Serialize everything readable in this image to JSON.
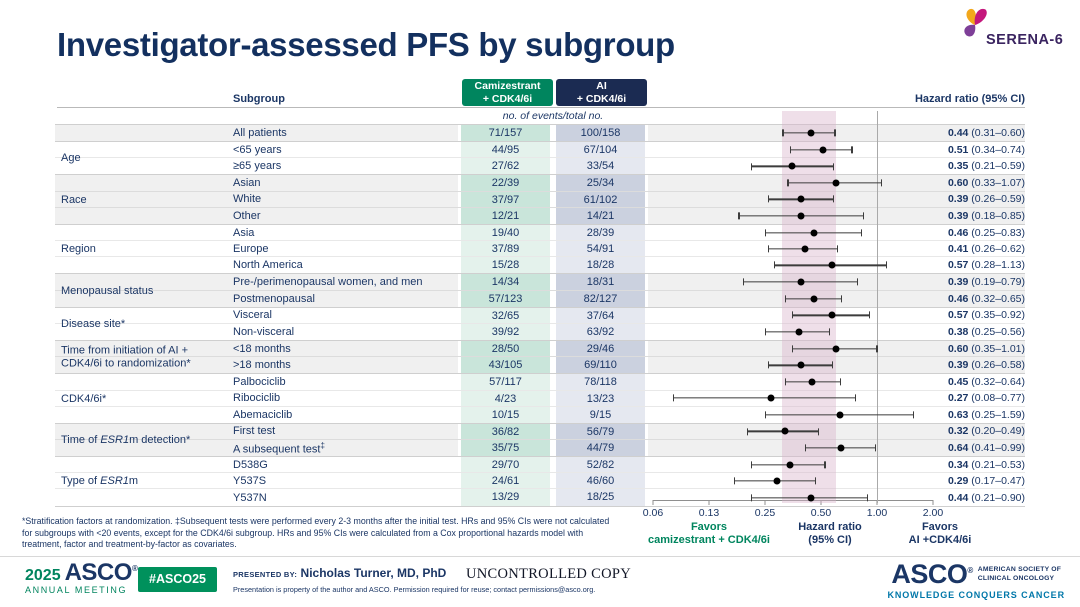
{
  "title": "Investigator-assessed PFS by subgroup",
  "trial_logo": {
    "name": "SERENA-6"
  },
  "table": {
    "subgroup_header": "Subgroup",
    "arm1": {
      "line1": "Camizestrant",
      "line2": "+ CDK4/6i"
    },
    "arm2": {
      "line1": "AI",
      "line2": "+ CDK4/6i"
    },
    "hr_header": "Hazard ratio (95% CI)",
    "events_note": "no. of events/total no."
  },
  "chart_data": {
    "type": "forest",
    "title": "Investigator-assessed PFS by subgroup",
    "x_axis": {
      "scale": "log2",
      "min": 0.0625,
      "max": 2.0,
      "reference_line": 1.0,
      "overall_ci_band": [
        0.31,
        0.6
      ],
      "ticks": [
        {
          "value": 0.0625,
          "label": "0.06"
        },
        {
          "value": 0.125,
          "label": "0.13"
        },
        {
          "value": 0.25,
          "label": "0.25"
        },
        {
          "value": 0.5,
          "label": "0.50"
        },
        {
          "value": 1.0,
          "label": "1.00"
        },
        {
          "value": 2.0,
          "label": "2.00"
        }
      ]
    },
    "axis_labels": {
      "favors_left": {
        "line1": "Favors",
        "line2": "camizestrant + CDK4/6i"
      },
      "center": {
        "line1": "Hazard ratio",
        "line2": "(95% CI)"
      },
      "favors_right": {
        "line1": "Favors",
        "line2": "AI +CDK4/6i"
      }
    },
    "groups": [
      {
        "label_parts": [],
        "shaded": true,
        "rows": [
          {
            "label": "All patients",
            "arm1": "71/157",
            "arm2": "100/158",
            "hr": 0.44,
            "low": 0.31,
            "high": 0.6,
            "hr_text": "0.44",
            "ci_text": "(0.31–0.60)"
          }
        ]
      },
      {
        "label_parts": [
          {
            "t": "Age"
          }
        ],
        "shaded": false,
        "rows": [
          {
            "label": "<65 years",
            "arm1": "44/95",
            "arm2": "67/104",
            "hr": 0.51,
            "low": 0.34,
            "high": 0.74,
            "hr_text": "0.51",
            "ci_text": "(0.34–0.74)"
          },
          {
            "label": "≥65 years",
            "arm1": "27/62",
            "arm2": "33/54",
            "hr": 0.35,
            "low": 0.21,
            "high": 0.59,
            "hr_text": "0.35",
            "ci_text": "(0.21–0.59)"
          }
        ]
      },
      {
        "label_parts": [
          {
            "t": "Race"
          }
        ],
        "shaded": true,
        "rows": [
          {
            "label": "Asian",
            "arm1": "22/39",
            "arm2": "25/34",
            "hr": 0.6,
            "low": 0.33,
            "high": 1.07,
            "hr_text": "0.60",
            "ci_text": "(0.33–1.07)"
          },
          {
            "label": "White",
            "arm1": "37/97",
            "arm2": "61/102",
            "hr": 0.39,
            "low": 0.26,
            "high": 0.59,
            "hr_text": "0.39",
            "ci_text": "(0.26–0.59)"
          },
          {
            "label": "Other",
            "arm1": "12/21",
            "arm2": "14/21",
            "hr": 0.39,
            "low": 0.18,
            "high": 0.85,
            "hr_text": "0.39",
            "ci_text": "(0.18–0.85)"
          }
        ]
      },
      {
        "label_parts": [
          {
            "t": "Region"
          }
        ],
        "shaded": false,
        "rows": [
          {
            "label": "Asia",
            "arm1": "19/40",
            "arm2": "28/39",
            "hr": 0.46,
            "low": 0.25,
            "high": 0.83,
            "hr_text": "0.46",
            "ci_text": "(0.25–0.83)"
          },
          {
            "label": "Europe",
            "arm1": "37/89",
            "arm2": "54/91",
            "hr": 0.41,
            "low": 0.26,
            "high": 0.62,
            "hr_text": "0.41",
            "ci_text": "(0.26–0.62)"
          },
          {
            "label": "North America",
            "arm1": "15/28",
            "arm2": "18/28",
            "hr": 0.57,
            "low": 0.28,
            "high": 1.13,
            "hr_text": "0.57",
            "ci_text": "(0.28–1.13)"
          }
        ]
      },
      {
        "label_parts": [
          {
            "t": "Menopausal status"
          }
        ],
        "shaded": true,
        "rows": [
          {
            "label": "Pre-/perimenopausal women, and men",
            "arm1": "14/34",
            "arm2": "18/31",
            "hr": 0.39,
            "low": 0.19,
            "high": 0.79,
            "hr_text": "0.39",
            "ci_text": "(0.19–0.79)"
          },
          {
            "label": "Postmenopausal",
            "arm1": "57/123",
            "arm2": "82/127",
            "hr": 0.46,
            "low": 0.32,
            "high": 0.65,
            "hr_text": "0.46",
            "ci_text": "(0.32–0.65)"
          }
        ]
      },
      {
        "label_parts": [
          {
            "t": "Disease site*"
          }
        ],
        "shaded": false,
        "rows": [
          {
            "label": "Visceral",
            "arm1": "32/65",
            "arm2": "37/64",
            "hr": 0.57,
            "low": 0.35,
            "high": 0.92,
            "hr_text": "0.57",
            "ci_text": "(0.35–0.92)"
          },
          {
            "label": "Non-visceral",
            "arm1": "39/92",
            "arm2": "63/92",
            "hr": 0.38,
            "low": 0.25,
            "high": 0.56,
            "hr_text": "0.38",
            "ci_text": "(0.25–0.56)"
          }
        ]
      },
      {
        "label_parts": [
          {
            "t": "Time from initiation of AI + CDK4/6i to randomization*"
          }
        ],
        "shaded": true,
        "rows": [
          {
            "label": "<18 months",
            "arm1": "28/50",
            "arm2": "29/46",
            "hr": 0.6,
            "low": 0.35,
            "high": 1.01,
            "hr_text": "0.60",
            "ci_text": "(0.35–1.01)"
          },
          {
            "label": ">18 months",
            "arm1": "43/105",
            "arm2": "69/110",
            "hr": 0.39,
            "low": 0.26,
            "high": 0.58,
            "hr_text": "0.39",
            "ci_text": "(0.26–0.58)"
          }
        ]
      },
      {
        "label_parts": [
          {
            "t": "CDK4/6i*"
          }
        ],
        "shaded": false,
        "rows": [
          {
            "label": "Palbociclib",
            "arm1": "57/117",
            "arm2": "78/118",
            "hr": 0.45,
            "low": 0.32,
            "high": 0.64,
            "hr_text": "0.45",
            "ci_text": "(0.32–0.64)"
          },
          {
            "label": "Ribociclib",
            "arm1": "4/23",
            "arm2": "13/23",
            "hr": 0.27,
            "low": 0.08,
            "high": 0.77,
            "hr_text": "0.27",
            "ci_text": "(0.08–0.77)"
          },
          {
            "label": "Abemaciclib",
            "arm1": "10/15",
            "arm2": "9/15",
            "hr": 0.63,
            "low": 0.25,
            "high": 1.59,
            "hr_text": "0.63",
            "ci_text": "(0.25–1.59)"
          }
        ]
      },
      {
        "label_parts": [
          {
            "t": "Time of "
          },
          {
            "t": "ESR1",
            "i": true
          },
          {
            "t": "m detection*"
          }
        ],
        "shaded": true,
        "rows": [
          {
            "label": "First test",
            "arm1": "36/82",
            "arm2": "56/79",
            "hr": 0.32,
            "low": 0.2,
            "high": 0.49,
            "hr_text": "0.32",
            "ci_text": "(0.20–0.49)"
          },
          {
            "label": "A subsequent test",
            "sup": "‡",
            "arm1": "35/75",
            "arm2": "44/79",
            "hr": 0.64,
            "low": 0.41,
            "high": 0.99,
            "hr_text": "0.64",
            "ci_text": "(0.41–0.99)"
          }
        ]
      },
      {
        "label_parts": [
          {
            "t": "Type of "
          },
          {
            "t": "ESR1",
            "i": true
          },
          {
            "t": "m"
          }
        ],
        "shaded": false,
        "rows": [
          {
            "label": "D538G",
            "arm1": "29/70",
            "arm2": "52/82",
            "hr": 0.34,
            "low": 0.21,
            "high": 0.53,
            "hr_text": "0.34",
            "ci_text": "(0.21–0.53)"
          },
          {
            "label": "Y537S",
            "arm1": "24/61",
            "arm2": "46/60",
            "hr": 0.29,
            "low": 0.17,
            "high": 0.47,
            "hr_text": "0.29",
            "ci_text": "(0.17–0.47)"
          },
          {
            "label": "Y537N",
            "arm1": "13/29",
            "arm2": "18/25",
            "hr": 0.44,
            "low": 0.21,
            "high": 0.9,
            "hr_text": "0.44",
            "ci_text": "(0.21–0.90)"
          }
        ]
      }
    ]
  },
  "footnote": "*Stratification factors at randomization. ‡Subsequent tests were performed every 2-3 months after the initial test. HRs and 95% CIs were not calculated for subgroups with <20 events, except for the CDK4/6i subgroup. HRs and 95% CIs were calculated from a Cox proportional hazards model with treatment, factor and treatment-by-factor as covariates.",
  "footer": {
    "meeting_year": "2025",
    "meeting_org": "ASCO",
    "meeting_sub": "ANNUAL MEETING",
    "hashtag": "#ASCO25",
    "presented_by_label": "PRESENTED BY:",
    "presenter": "Nicholas Turner, MD, PhD",
    "disclaimer": "Presentation is property of the author and ASCO. Permission required for reuse; contact permissions@asco.org.",
    "watermark": "UNCONTROLLED COPY",
    "asco_logo": {
      "org": "ASCO",
      "sub1": "AMERICAN SOCIETY OF",
      "sub2": "CLINICAL ONCOLOGY",
      "tagline": "KNOWLEDGE CONQUERS CANCER"
    }
  },
  "colors": {
    "navy": "#1B3665",
    "green": "#00855E",
    "header_navy": "#1B2B52",
    "band_pink": "#EBD6E4",
    "tagline_teal": "#0077A9"
  }
}
